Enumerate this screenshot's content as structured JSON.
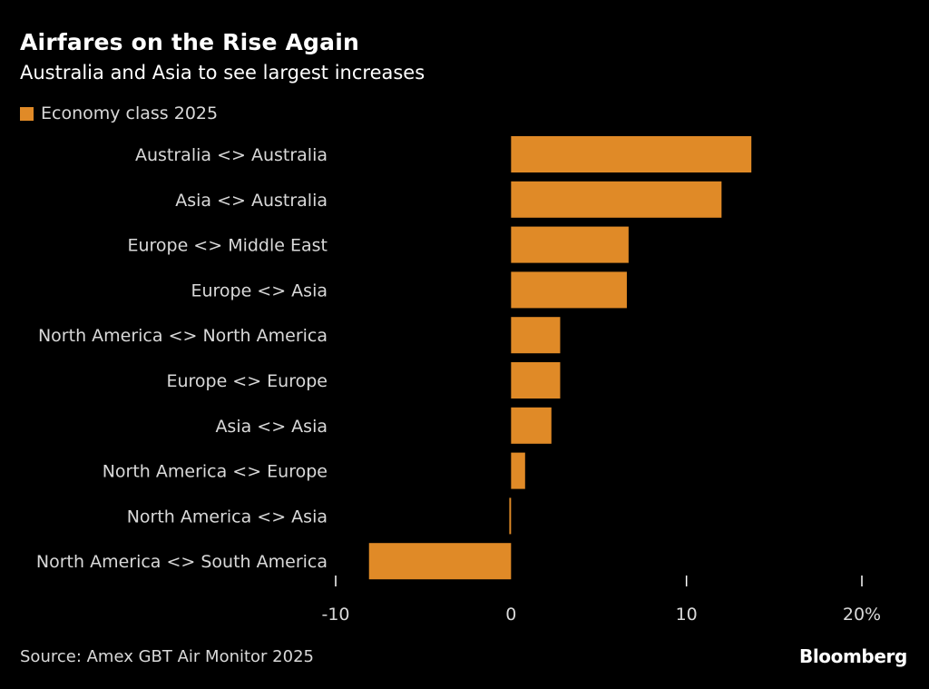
{
  "header": {
    "title": "Airfares on the Rise Again",
    "subtitle": "Australia and Asia to see largest increases"
  },
  "legend": {
    "label": "Economy class 2025"
  },
  "footer": {
    "source": "Source: Amex GBT Air Monitor 2025",
    "brand": "Bloomberg"
  },
  "colors": {
    "background": "#000000",
    "bar": "#e08a27",
    "text": "#d9d9d9",
    "tick": "#ffffff"
  },
  "chart_data": {
    "type": "bar",
    "orientation": "horizontal",
    "title": "Airfares on the Rise Again",
    "subtitle": "Australia and Asia to see largest increases",
    "categories": [
      "Australia <> Australia",
      "Asia <> Australia",
      "Europe <> Middle East",
      "Europe <> Asia",
      "North America <> North America",
      "Europe <> Europe",
      "Asia <> Asia",
      "North America <> Europe",
      "North America <> Asia",
      "North America <> South America"
    ],
    "series": [
      {
        "name": "Economy class 2025",
        "values": [
          13.7,
          12.0,
          6.7,
          6.6,
          2.8,
          2.8,
          2.3,
          0.8,
          -0.1,
          -8.1
        ]
      }
    ],
    "xlim": [
      -10,
      20
    ],
    "xticks": [
      -10,
      0,
      10,
      20
    ],
    "xtick_labels": [
      "-10",
      "0",
      "10",
      "20%"
    ],
    "xlabel": "",
    "ylabel": "",
    "legend_position": "top-left",
    "grid": false
  }
}
